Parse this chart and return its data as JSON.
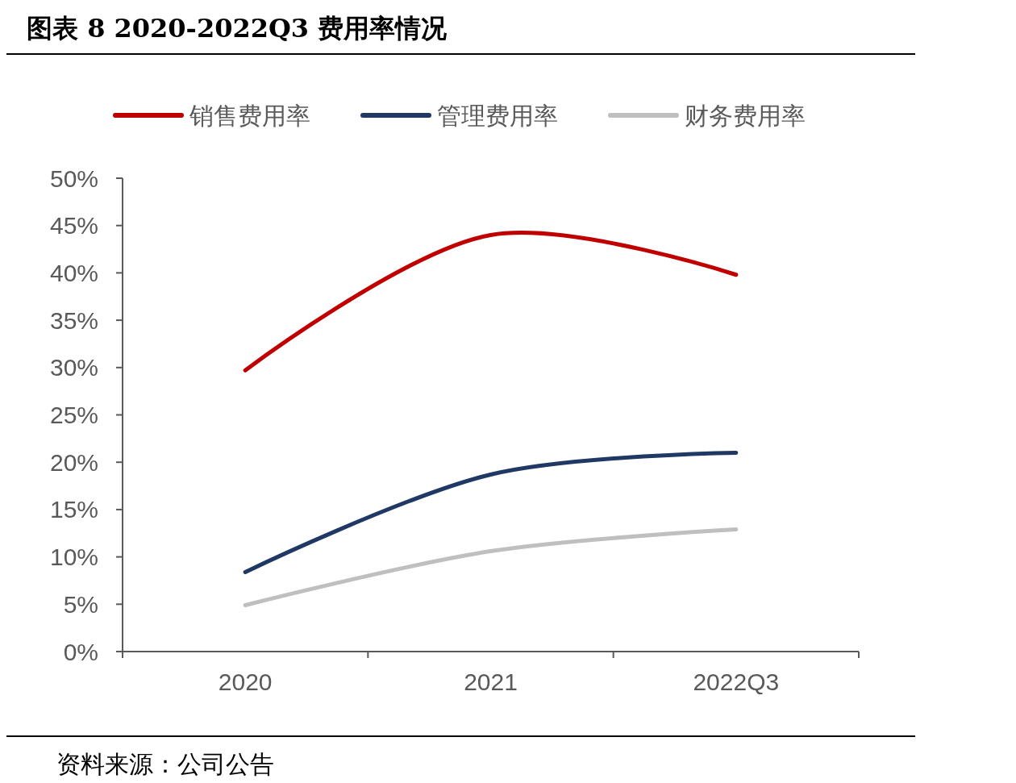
{
  "chart_data": {
    "type": "line",
    "title": "图表 8 2020-2022Q3 费用率情况",
    "categories": [
      "2020",
      "2021",
      "2022Q3"
    ],
    "series": [
      {
        "name": "销售费用率",
        "color": "#c00000",
        "values": [
          29.7,
          44.0,
          39.8
        ]
      },
      {
        "name": "管理费用率",
        "color": "#203864",
        "values": [
          8.4,
          18.7,
          21.0
        ]
      },
      {
        "name": "财务费用率",
        "color": "#bfbfbf",
        "values": [
          4.9,
          10.6,
          12.9
        ]
      }
    ],
    "ylim": [
      0,
      50
    ],
    "yticks": [
      {
        "value": 0,
        "label": "0%"
      },
      {
        "value": 5,
        "label": "5%"
      },
      {
        "value": 10,
        "label": "10%"
      },
      {
        "value": 15,
        "label": "15%"
      },
      {
        "value": 20,
        "label": "20%"
      },
      {
        "value": 25,
        "label": "25%"
      },
      {
        "value": 30,
        "label": "30%"
      },
      {
        "value": 35,
        "label": "35%"
      },
      {
        "value": 40,
        "label": "40%"
      },
      {
        "value": 45,
        "label": "45%"
      },
      {
        "value": 50,
        "label": "50%"
      }
    ],
    "legend": "top",
    "grid": false,
    "marker": "none",
    "line_style": "solid",
    "annotations": [
      "资料来源：公司公告"
    ]
  }
}
